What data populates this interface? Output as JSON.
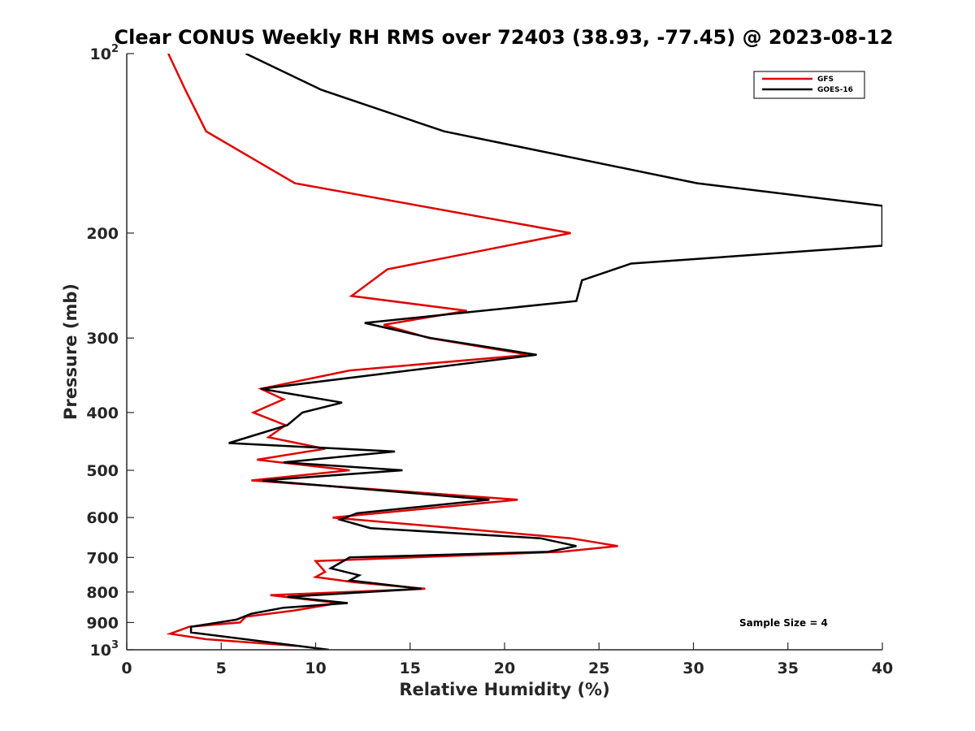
{
  "chart_data": {
    "type": "line",
    "title": "Clear CONUS Weekly RH RMS over 72403 (38.93, -77.45) @ 2023-08-12",
    "xlabel": "Relative Humidity (%)",
    "ylabel": "Pressure (mb)",
    "xlim": [
      0,
      40
    ],
    "ylim": [
      100,
      1000
    ],
    "y_scale": "log",
    "y_reversed": true,
    "grid": false,
    "legend_position": "top-right",
    "x_ticks": [
      "0",
      "5",
      "10",
      "15",
      "20",
      "25",
      "30",
      "35",
      "40"
    ],
    "y_ticks": [
      {
        "value": 100,
        "label": "10",
        "sup": "2"
      },
      {
        "value": 200,
        "label": "200",
        "sup": ""
      },
      {
        "value": 300,
        "label": "300",
        "sup": ""
      },
      {
        "value": 400,
        "label": "400",
        "sup": ""
      },
      {
        "value": 500,
        "label": "500",
        "sup": ""
      },
      {
        "value": 600,
        "label": "600",
        "sup": ""
      },
      {
        "value": 700,
        "label": "700",
        "sup": ""
      },
      {
        "value": 800,
        "label": "800",
        "sup": ""
      },
      {
        "value": 900,
        "label": "900",
        "sup": ""
      },
      {
        "value": 1000,
        "label": "10",
        "sup": "3"
      }
    ],
    "series": [
      {
        "name": "GFS",
        "color": "#e00000",
        "points": [
          [
            2.2,
            100
          ],
          [
            3.1,
            115
          ],
          [
            4.2,
            135
          ],
          [
            8.9,
            165
          ],
          [
            23.5,
            200
          ],
          [
            13.8,
            230
          ],
          [
            11.9,
            255
          ],
          [
            18.0,
            270
          ],
          [
            13.6,
            285
          ],
          [
            16.0,
            300
          ],
          [
            21.3,
            320
          ],
          [
            11.8,
            340
          ],
          [
            7.1,
            365
          ],
          [
            8.3,
            380
          ],
          [
            6.7,
            400
          ],
          [
            8.4,
            420
          ],
          [
            7.5,
            440
          ],
          [
            10.5,
            460
          ],
          [
            6.9,
            480
          ],
          [
            11.8,
            500
          ],
          [
            6.6,
            520
          ],
          [
            20.7,
            560
          ],
          [
            10.9,
            600
          ],
          [
            23.5,
            650
          ],
          [
            26.0,
            670
          ],
          [
            23.0,
            685
          ],
          [
            10.0,
            710
          ],
          [
            10.5,
            740
          ],
          [
            10.0,
            755
          ],
          [
            12.0,
            770
          ],
          [
            15.8,
            790
          ],
          [
            7.6,
            810
          ],
          [
            11.2,
            835
          ],
          [
            8.8,
            860
          ],
          [
            6.3,
            880
          ],
          [
            6.0,
            900
          ],
          [
            3.3,
            915
          ],
          [
            2.3,
            940
          ],
          [
            4.2,
            960
          ],
          [
            9.0,
            985
          ]
        ]
      },
      {
        "name": "GOES-16",
        "color": "#000000",
        "points": [
          [
            6.3,
            100
          ],
          [
            10.3,
            115
          ],
          [
            16.8,
            135
          ],
          [
            30.2,
            165
          ],
          [
            40.0,
            180
          ],
          [
            40.0,
            210
          ],
          [
            26.7,
            225
          ],
          [
            24.1,
            240
          ],
          [
            23.8,
            260
          ],
          [
            12.6,
            283
          ],
          [
            16.1,
            300
          ],
          [
            21.7,
            320
          ],
          [
            7.1,
            365
          ],
          [
            11.4,
            385
          ],
          [
            9.3,
            400
          ],
          [
            8.5,
            420
          ],
          [
            5.4,
            450
          ],
          [
            14.2,
            465
          ],
          [
            8.3,
            485
          ],
          [
            14.6,
            500
          ],
          [
            7.2,
            520
          ],
          [
            19.2,
            560
          ],
          [
            12.2,
            590
          ],
          [
            11.3,
            605
          ],
          [
            12.9,
            625
          ],
          [
            21.9,
            650
          ],
          [
            23.8,
            670
          ],
          [
            22.3,
            685
          ],
          [
            11.8,
            700
          ],
          [
            10.8,
            730
          ],
          [
            12.3,
            750
          ],
          [
            11.8,
            765
          ],
          [
            15.6,
            790
          ],
          [
            8.5,
            815
          ],
          [
            11.7,
            835
          ],
          [
            8.3,
            850
          ],
          [
            6.6,
            870
          ],
          [
            5.8,
            890
          ],
          [
            3.4,
            915
          ],
          [
            3.4,
            935
          ],
          [
            10.7,
            1000
          ]
        ]
      }
    ],
    "annotations": [
      {
        "text": "Sample Size = 4"
      }
    ]
  }
}
